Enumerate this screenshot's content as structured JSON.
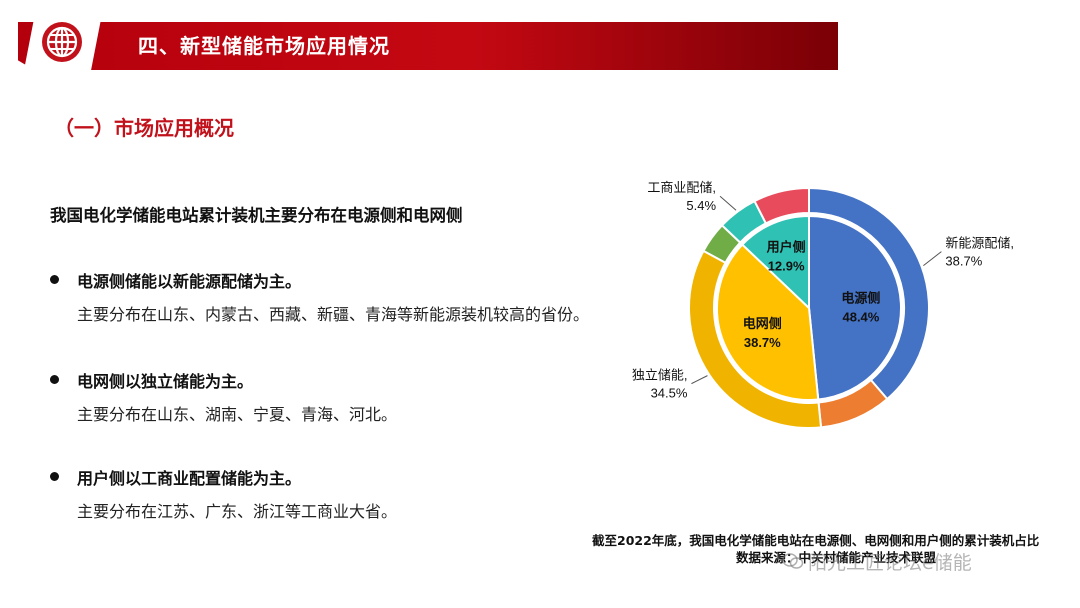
{
  "header": {
    "title": "四、新型储能市场应用情况",
    "icon": "globe-icon"
  },
  "section": {
    "title": "（一）市场应用概况"
  },
  "subtitle": "我国电化学储能电站累计装机主要分布在电源侧和电网侧",
  "bullets": [
    {
      "head": "电源侧储能以新能源配储为主。",
      "desc": "主要分布在山东、内蒙古、西藏、新疆、青海等新能源装机较高的省份。"
    },
    {
      "head": "电网侧以独立储能为主。",
      "desc": "主要分布在山东、湖南、宁夏、青海、河北。"
    },
    {
      "head": "用户侧以工商业配置储能为主。",
      "desc": "主要分布在江苏、广东、浙江等工商业大省。"
    }
  ],
  "chart_data": {
    "type": "pie",
    "inner": {
      "slices": [
        {
          "name": "电源侧",
          "value": 48.4,
          "label": "48.4%",
          "color": "#4472c4"
        },
        {
          "name": "电网侧",
          "value": 38.7,
          "label": "38.7%",
          "color": "#ffc000"
        },
        {
          "name": "用户侧",
          "value": 12.9,
          "label": "12.9%",
          "color": "#2fc1b3"
        }
      ]
    },
    "outer": {
      "slices": [
        {
          "name": "新能源配储,",
          "value": 38.7,
          "label": "38.7%",
          "color": "#4472c4"
        },
        {
          "name": "",
          "value": 9.7,
          "color": "#ed7d31"
        },
        {
          "name": "独立储能,",
          "value": 34.5,
          "label": "34.5%",
          "color": "#f0b400"
        },
        {
          "name": "",
          "value": 4.2,
          "color": "#70ad47"
        },
        {
          "name": "工商业配储,",
          "value": 5.4,
          "label": "5.4%",
          "color": "#2fc1b3"
        },
        {
          "name": "",
          "value": 7.5,
          "color": "#e84c5c"
        }
      ]
    }
  },
  "caption": "截至2022年底，我国电化学储能电站在电源侧、电网侧和用户侧的累计装机占比",
  "source": "数据来源：中关村储能产业技术联盟",
  "watermark": "阳光工匠论坛e储能"
}
